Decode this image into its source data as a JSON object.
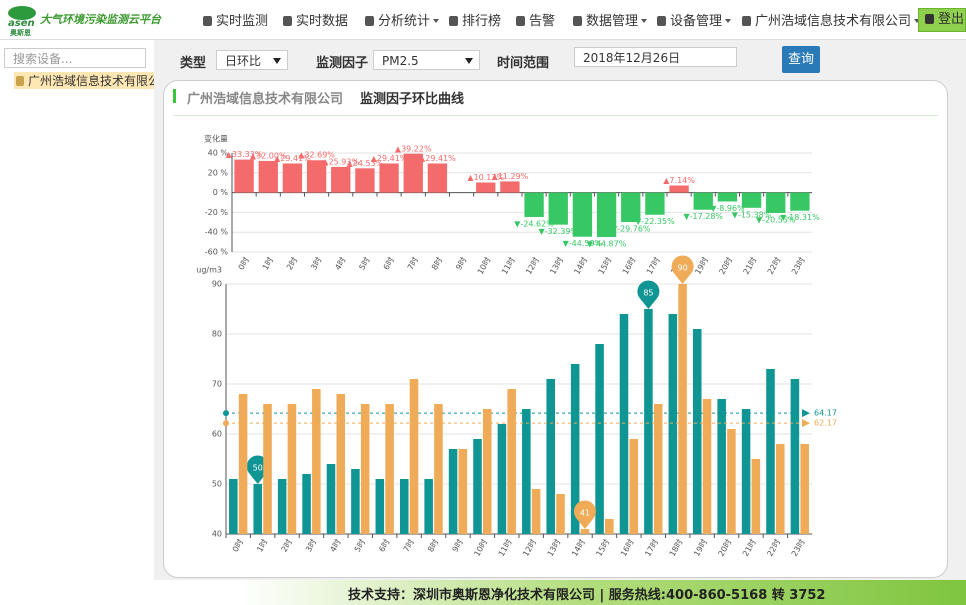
{
  "header": {
    "logo": "asen",
    "logo_sub": "奥斯恩",
    "title": "大气环境污染监测云平台",
    "menu": [
      "实时监测",
      "实时数据",
      "分析统计",
      "排行榜",
      "告警",
      "数据管理",
      "设备管理",
      "广州浩域信息技术有限公司"
    ],
    "logout": "登出"
  },
  "sidebar": {
    "search_placeholder": "搜索设备...",
    "tree": [
      "广州浩域信息技术有限公司"
    ]
  },
  "filters": {
    "type_label": "类型",
    "type_value": "日环比",
    "factor_label": "监测因子",
    "factor_value": "PM2.5",
    "time_label": "时间范围",
    "time_value": "2018年12月26日",
    "query": "查询"
  },
  "panel": {
    "company": "广州浩域信息技术有限公司",
    "title": "监测因子环比曲线"
  },
  "chart_data": [
    {
      "type": "bar",
      "y_label": "变化量",
      "categories": [
        "0时",
        "1时",
        "2时",
        "3时",
        "4时",
        "5时",
        "6时",
        "7时",
        "8时",
        "9时",
        "10时",
        "11时",
        "12时",
        "13时",
        "14时",
        "15时",
        "16时",
        "17时",
        "18时",
        "19时",
        "20时",
        "21时",
        "22时",
        "23时"
      ],
      "values": [
        33.33,
        32,
        29.41,
        32.69,
        25.93,
        24.53,
        29.41,
        39.22,
        29.41,
        0,
        10.17,
        11.29,
        -24.62,
        -32.39,
        -44.59,
        -44.87,
        -29.76,
        -22.35,
        7.14,
        -17.28,
        -8.96,
        -15.38,
        -20.55,
        -18.31
      ],
      "value_labels": [
        "▲33.33%",
        "▲32.00%",
        "▲29.41%",
        "▲32.69%",
        "▲25.93%",
        "▲24.53%",
        "▲29.41%",
        "▲39.22%",
        "▲29.41%",
        null,
        "▲10.17%",
        "▲11.29%",
        "▼-24.62%",
        "▼-32.39%",
        "▼-44.59%",
        "▼-44.87%",
        "▼-29.76%",
        "▼-22.35%",
        "▲7.14%",
        "▼-17.28%",
        "▼-8.96%",
        "▼-15.38%",
        "▼-20.55%",
        "▼-18.31%"
      ],
      "positive_color": "#f46b6b",
      "negative_color": "#37c865",
      "ylim": [
        -60,
        40
      ],
      "yticks": [
        {
          "value": -60,
          "label": "-60 %"
        },
        {
          "value": -40,
          "label": "-40 %"
        },
        {
          "value": -20,
          "label": "-20 %"
        },
        {
          "value": 0,
          "label": "0 %"
        },
        {
          "value": 20,
          "label": "20 %"
        },
        {
          "value": 40,
          "label": "40 %"
        }
      ],
      "grid": true
    },
    {
      "type": "grouped_bar",
      "y_label": "ug/m3",
      "categories": [
        "0时",
        "1时",
        "2时",
        "3时",
        "4时",
        "5时",
        "6时",
        "7时",
        "8时",
        "9时",
        "10时",
        "11时",
        "12时",
        "13时",
        "14时",
        "15时",
        "16时",
        "17时",
        "18时",
        "19时",
        "20时",
        "21时",
        "22时",
        "23时"
      ],
      "series": [
        {
          "color": "#0f9594",
          "values": [
            51,
            50,
            51,
            52,
            54,
            53,
            51,
            51,
            51,
            57,
            59,
            62,
            65,
            71,
            74,
            78,
            84,
            85,
            84,
            81,
            67,
            65,
            73,
            71
          ],
          "average": 64.17
        },
        {
          "color": "#efab57",
          "values": [
            68,
            66,
            66,
            69,
            68,
            66,
            66,
            71,
            66,
            57,
            65,
            69,
            49,
            48,
            41,
            43,
            59,
            66,
            90,
            67,
            61,
            55,
            58,
            58
          ],
          "average": 62.17
        }
      ],
      "mark_points": [
        "max",
        "min"
      ],
      "ylim": [
        40,
        90
      ],
      "yticks": [
        40,
        50,
        60,
        70,
        80,
        90
      ],
      "grid": true
    }
  ],
  "footer": "技术支持：深圳市奥斯恩净化技术有限公司 | 服务热线:400-860-5168 转 3752"
}
